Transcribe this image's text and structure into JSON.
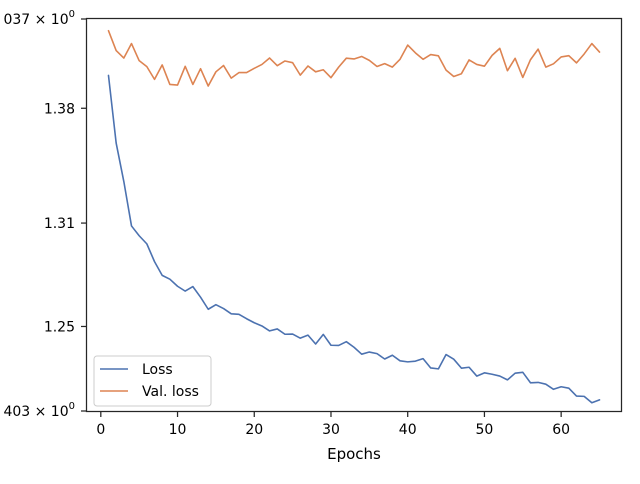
{
  "chart_data": {
    "type": "line",
    "title": "",
    "xlabel": "Epochs",
    "ylabel": "",
    "x_ticks": [
      0,
      10,
      20,
      30,
      40,
      50,
      60
    ],
    "x_tick_labels": [
      "0",
      "10",
      "20",
      "30",
      "40",
      "50",
      "60"
    ],
    "xlim": [
      -1.8,
      67.8
    ],
    "y_log_scale": true,
    "ylim": [
      1.203,
      1.437
    ],
    "y_ticks": [
      1.203,
      1.25,
      1.31,
      1.38,
      1.437
    ],
    "y_tick_labels": [
      {
        "base": "",
        "mantissa": "403",
        "exp": "0"
      },
      {
        "base": "1.25",
        "mantissa": "",
        "exp": ""
      },
      {
        "base": "1.31",
        "mantissa": "",
        "exp": ""
      },
      {
        "base": "1.38",
        "mantissa": "",
        "exp": ""
      },
      {
        "base": "",
        "mantissa": "037",
        "exp": "0"
      }
    ],
    "grid": false,
    "legend_position": "lower-left",
    "x": [
      1,
      2,
      3,
      4,
      5,
      6,
      7,
      8,
      9,
      10,
      11,
      12,
      13,
      14,
      15,
      16,
      17,
      18,
      19,
      20,
      21,
      22,
      23,
      24,
      25,
      26,
      27,
      28,
      29,
      30,
      31,
      32,
      33,
      34,
      35,
      36,
      37,
      38,
      39,
      40,
      41,
      42,
      43,
      44,
      45,
      46,
      47,
      48,
      49,
      50,
      51,
      52,
      53,
      54,
      55,
      56,
      57,
      58,
      59,
      60,
      61,
      62,
      63,
      64,
      65
    ],
    "series": [
      {
        "name": "Loss",
        "color": "#4c72b0",
        "values": [
          1.4007,
          1.3584,
          1.3349,
          1.3083,
          1.3025,
          1.2977,
          1.2873,
          1.2793,
          1.2771,
          1.273,
          1.2702,
          1.2728,
          1.2667,
          1.2598,
          1.2624,
          1.2602,
          1.2572,
          1.2569,
          1.2544,
          1.2521,
          1.2503,
          1.2475,
          1.2486,
          1.2456,
          1.2457,
          1.2434,
          1.2451,
          1.2401,
          1.2455,
          1.2394,
          1.2393,
          1.2414,
          1.2383,
          1.2344,
          1.2356,
          1.2347,
          1.2317,
          1.2338,
          1.2307,
          1.2301,
          1.2305,
          1.2319,
          1.2267,
          1.2262,
          1.2342,
          1.2316,
          1.2266,
          1.2271,
          1.2222,
          1.224,
          1.2232,
          1.2222,
          1.2201,
          1.2238,
          1.2243,
          1.2185,
          1.2187,
          1.2177,
          1.2149,
          1.2163,
          1.2155,
          1.2112,
          1.211,
          1.2075,
          1.2091
        ]
      },
      {
        "name": "Val. loss",
        "color": "#dd8452",
        "values": [
          1.4294,
          1.4166,
          1.4118,
          1.4211,
          1.4101,
          1.4063,
          1.3982,
          1.4074,
          1.395,
          1.3946,
          1.4065,
          1.395,
          1.405,
          1.394,
          1.403,
          1.407,
          1.399,
          1.4025,
          1.4025,
          1.4052,
          1.4077,
          1.4118,
          1.4069,
          1.4099,
          1.4088,
          1.4009,
          1.4067,
          1.403,
          1.4043,
          1.3993,
          1.406,
          1.4117,
          1.4112,
          1.4128,
          1.4103,
          1.4064,
          1.4082,
          1.406,
          1.411,
          1.4201,
          1.4151,
          1.411,
          1.414,
          1.4132,
          1.4041,
          1.4,
          1.4018,
          1.4106,
          1.4077,
          1.4066,
          1.4135,
          1.418,
          1.4037,
          1.4116,
          1.3994,
          1.4107,
          1.4175,
          1.406,
          1.4081,
          1.4125,
          1.4133,
          1.4087,
          1.4144,
          1.4211,
          1.4156
        ]
      }
    ]
  }
}
